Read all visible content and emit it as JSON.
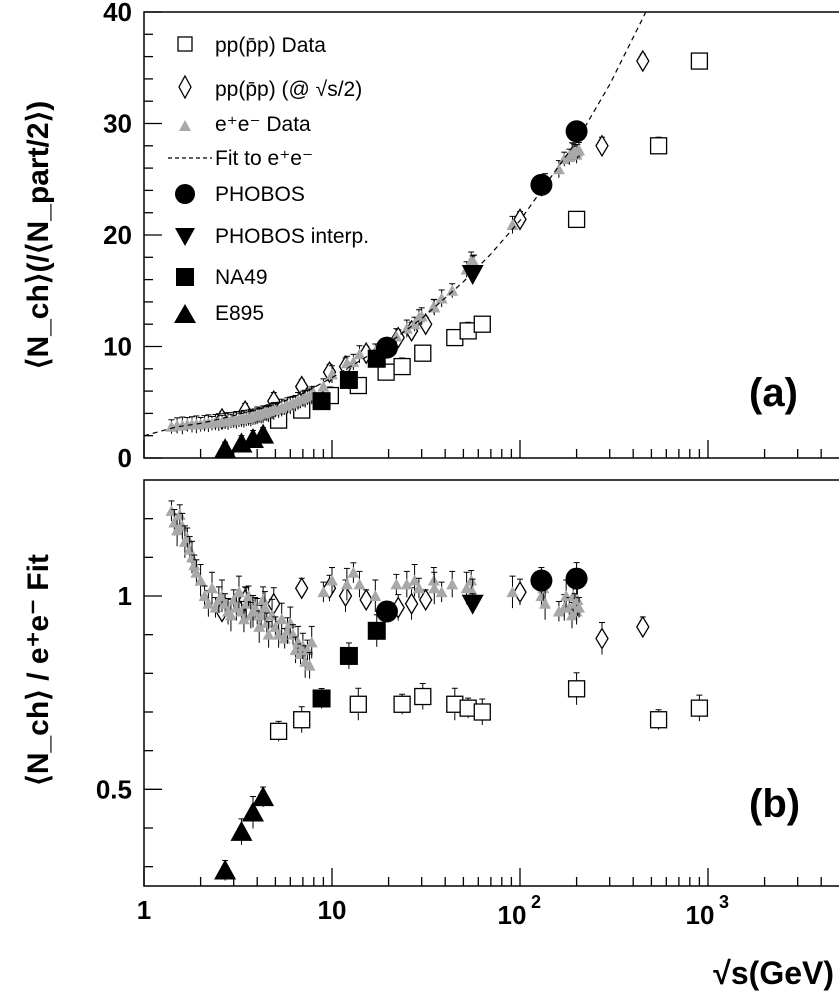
{
  "chart_data": [
    {
      "panel": "(a)",
      "type": "scatter",
      "xscale": "log",
      "xlim": [
        1,
        6000
      ],
      "ylim": [
        0,
        40
      ],
      "yticks": [
        0,
        10,
        20,
        30,
        40
      ],
      "ylabel": "⟨N_ch⟩(/⟨N_part/2⟩)",
      "legend_position": "top-left",
      "series": [
        {
          "name": "pp(p̄p) Data",
          "marker": "open-square",
          "color": "#000000",
          "x": [
            5.2,
            6.9,
            9.8,
            13.8,
            19.4,
            23.6,
            30.4,
            45,
            53,
            63,
            200,
            546,
            900
          ],
          "y": [
            3.4,
            4.3,
            5.6,
            6.5,
            7.7,
            8.2,
            9.4,
            10.8,
            11.4,
            12.0,
            21.4,
            28.0,
            35.6
          ]
        },
        {
          "name": "pp(p̄p) (@ √s/2)",
          "marker": "open-diamond",
          "color": "#000000",
          "x": [
            2.6,
            3.45,
            4.9,
            6.9,
            9.7,
            11.8,
            15.2,
            22.5,
            26.5,
            31.5,
            100,
            273,
            450
          ],
          "y": [
            3.5,
            4.2,
            5.1,
            6.4,
            7.7,
            8.2,
            9.4,
            10.8,
            11.4,
            12.0,
            21.4,
            28.0,
            35.6
          ]
        },
        {
          "name": "e⁺e⁻ Data",
          "marker": "filled-triangle",
          "color": "#a8a8a8",
          "x": [
            1.4,
            1.5,
            1.6,
            1.7,
            1.8,
            1.9,
            2.0,
            2.1,
            2.2,
            2.3,
            2.4,
            2.5,
            2.6,
            2.7,
            2.8,
            2.9,
            3.0,
            3.1,
            3.2,
            3.3,
            3.4,
            3.5,
            3.6,
            3.7,
            3.8,
            3.9,
            4.0,
            4.1,
            4.2,
            4.3,
            4.4,
            4.5,
            4.6,
            4.7,
            4.8,
            4.9,
            5.0,
            5.2,
            5.4,
            5.6,
            5.8,
            6.0,
            6.2,
            6.4,
            6.6,
            6.8,
            7.0,
            7.2,
            7.4,
            7.6,
            7.8,
            8.0,
            9.0,
            10.0,
            12.0,
            13.0,
            14.0,
            17.0,
            22.0,
            25.0,
            27.5,
            29.0,
            30.0,
            34.8,
            35.0,
            38.3,
            43.6,
            52.0,
            55.0,
            56.0,
            57.0,
            91.2,
            130,
            136,
            161,
            172,
            183,
            189,
            192,
            196,
            200,
            202,
            206
          ],
          "y": [
            2.8,
            2.9,
            2.9,
            3.0,
            3.0,
            3.0,
            3.0,
            3.1,
            3.1,
            3.1,
            3.2,
            3.2,
            3.2,
            3.3,
            3.3,
            3.3,
            3.4,
            3.4,
            3.4,
            3.5,
            3.5,
            3.5,
            3.6,
            3.6,
            3.6,
            3.7,
            3.8,
            3.8,
            3.8,
            3.9,
            4.0,
            4.0,
            4.0,
            4.1,
            4.2,
            4.2,
            4.3,
            4.3,
            4.5,
            4.5,
            4.7,
            4.7,
            4.9,
            4.9,
            5.1,
            5.1,
            5.3,
            5.3,
            5.4,
            5.5,
            5.6,
            5.8,
            6.4,
            7.5,
            8.5,
            8.6,
            9.3,
            9.6,
            10.9,
            11.6,
            12.0,
            12.6,
            12.7,
            13.6,
            13.5,
            14.3,
            15.0,
            16.9,
            17.7,
            17.5,
            17.5,
            20.9,
            24.1,
            24.8,
            25.9,
            26.8,
            27.0,
            27.5,
            27.6,
            27.4,
            27.2,
            27.5,
            27.6
          ]
        },
        {
          "name": "Fit to e⁺e⁻",
          "marker": "dashed-line",
          "color": "#000000",
          "x": [
            1.0,
            1.5,
            2.0,
            3.0,
            5.0,
            7.0,
            10,
            15,
            20,
            30,
            50,
            70,
            100,
            130,
            200,
            300,
            500
          ],
          "y": [
            2.0,
            2.8,
            3.1,
            3.8,
            4.8,
            5.8,
            7.2,
            9.0,
            10.3,
            12.5,
            15.8,
            18.3,
            21.3,
            24.0,
            28.4,
            33.5,
            41.0
          ]
        },
        {
          "name": "PHOBOS",
          "marker": "filled-circle",
          "color": "#000000",
          "x": [
            19.6,
            130,
            200
          ],
          "y": [
            9.9,
            24.5,
            29.3
          ]
        },
        {
          "name": "PHOBOS interp.",
          "marker": "filled-down-triangle",
          "color": "#000000",
          "x": [
            56
          ],
          "y": [
            16.5
          ]
        },
        {
          "name": "NA49",
          "marker": "filled-square",
          "color": "#000000",
          "x": [
            8.8,
            12.3,
            17.3
          ],
          "y": [
            5.1,
            7.0,
            8.9
          ]
        },
        {
          "name": "E895",
          "marker": "filled-triangle",
          "color": "#000000",
          "x": [
            2.7,
            3.3,
            3.8,
            4.3
          ],
          "y": [
            0.8,
            1.3,
            1.7,
            2.1
          ]
        }
      ]
    },
    {
      "panel": "(b)",
      "type": "scatter",
      "xscale": "log",
      "xlim": [
        1,
        6000
      ],
      "ylim": [
        0.25,
        1.3
      ],
      "yticks": [
        0.5,
        1
      ],
      "ylabel": "⟨N_ch⟩ / e⁺e⁻ Fit",
      "xlabel": "√s(GeV)",
      "xticks": [
        1,
        10,
        100,
        1000
      ],
      "series": [
        {
          "name": "pp(p̄p) Data",
          "marker": "open-square",
          "color": "#000000",
          "x": [
            5.2,
            6.9,
            13.8,
            23.6,
            30.4,
            45,
            53,
            63,
            200,
            546,
            900
          ],
          "y": [
            0.65,
            0.68,
            0.72,
            0.72,
            0.74,
            0.72,
            0.71,
            0.7,
            0.76,
            0.68,
            0.71
          ]
        },
        {
          "name": "pp(p̄p) (@ √s/2)",
          "marker": "open-diamond",
          "color": "#000000",
          "x": [
            2.6,
            3.45,
            4.9,
            6.9,
            9.7,
            11.8,
            15.2,
            22.5,
            26.5,
            31.5,
            100,
            273,
            450
          ],
          "y": [
            0.96,
            0.99,
            0.98,
            1.02,
            1.02,
            1.0,
            0.99,
            0.97,
            0.98,
            0.99,
            1.01,
            0.89,
            0.92
          ]
        },
        {
          "name": "e⁺e⁻ Data",
          "marker": "filled-triangle",
          "color": "#a8a8a8",
          "x": [
            1.4,
            1.45,
            1.5,
            1.55,
            1.6,
            1.65,
            1.7,
            1.75,
            1.8,
            1.85,
            1.9,
            2.0,
            2.1,
            2.2,
            2.3,
            2.4,
            2.5,
            2.6,
            2.7,
            2.8,
            2.9,
            3.0,
            3.1,
            3.2,
            3.3,
            3.4,
            3.5,
            3.6,
            3.7,
            3.8,
            3.9,
            4.0,
            4.1,
            4.2,
            4.3,
            4.4,
            4.5,
            4.6,
            4.8,
            5.0,
            5.2,
            5.4,
            5.6,
            5.8,
            6.0,
            6.2,
            6.4,
            6.6,
            6.8,
            7.0,
            7.2,
            7.4,
            7.6,
            7.8,
            9.0,
            10.0,
            12.0,
            13.0,
            14.0,
            17.0,
            22.0,
            25.0,
            27.5,
            29.0,
            34.8,
            35.0,
            38.3,
            43.6,
            52.0,
            55.0,
            56.0,
            91.2,
            130,
            133,
            136,
            161,
            172,
            176,
            183,
            189,
            192,
            196,
            200,
            202,
            206
          ],
          "y": [
            1.22,
            1.19,
            1.17,
            1.21,
            1.18,
            1.14,
            1.15,
            1.12,
            1.1,
            1.08,
            1.06,
            1.04,
            1.0,
            0.98,
            1.02,
            0.97,
            0.99,
            1.0,
            0.98,
            0.96,
            0.95,
            0.99,
            0.97,
            1.01,
            0.96,
            0.94,
            0.98,
            1.0,
            0.95,
            0.96,
            0.97,
            0.96,
            0.92,
            0.95,
            0.99,
            0.97,
            0.93,
            0.9,
            0.95,
            0.92,
            0.9,
            0.94,
            0.89,
            0.91,
            0.93,
            0.9,
            0.86,
            0.88,
            0.85,
            0.87,
            0.83,
            0.86,
            0.82,
            0.88,
            1.01,
            1.04,
            1.03,
            1.06,
            1.03,
            1.0,
            1.03,
            1.03,
            1.04,
            1.02,
            1.04,
            1.02,
            1.01,
            1.03,
            1.02,
            1.04,
            1.01,
            1.01,
            1.0,
            1.02,
            0.98,
            0.96,
            0.97,
            1.0,
            0.97,
            0.95,
            1.0,
            0.98,
            0.96,
            0.99,
            0.97
          ]
        },
        {
          "name": "PHOBOS",
          "marker": "filled-circle",
          "color": "#000000",
          "x": [
            19.6,
            130,
            200
          ],
          "y": [
            0.96,
            1.04,
            1.045
          ]
        },
        {
          "name": "PHOBOS interp.",
          "marker": "filled-down-triangle",
          "color": "#000000",
          "x": [
            56
          ],
          "y": [
            0.98
          ]
        },
        {
          "name": "NA49",
          "marker": "filled-square",
          "color": "#000000",
          "x": [
            8.8,
            12.3,
            17.3
          ],
          "y": [
            0.735,
            0.845,
            0.91
          ]
        },
        {
          "name": "E895",
          "marker": "filled-triangle",
          "color": "#000000",
          "x": [
            2.7,
            3.3,
            3.8,
            4.3
          ],
          "y": [
            0.29,
            0.39,
            0.44,
            0.48
          ]
        }
      ]
    }
  ],
  "panel_labels": {
    "a": "(a)",
    "b": "(b)"
  },
  "axis_labels": {
    "top_y": "⟨N_ch⟩(/⟨N_part/2⟩)",
    "bottom_y": "⟨N_ch⟩ / e⁺e⁻ Fit",
    "x": "√s(GeV)"
  },
  "legend": [
    {
      "label": "pp(p̄p) Data",
      "marker": "open-square"
    },
    {
      "label": "pp(p̄p) (@ √s/2)",
      "marker": "open-diamond"
    },
    {
      "label": "e⁺e⁻ Data",
      "marker": "grey-triangle"
    },
    {
      "label": "Fit to e⁺e⁻",
      "marker": "dashed-line"
    },
    {
      "label": "PHOBOS",
      "marker": "filled-circle"
    },
    {
      "label": "PHOBOS interp.",
      "marker": "filled-down-triangle"
    },
    {
      "label": "NA49",
      "marker": "filled-square"
    },
    {
      "label": "E895",
      "marker": "filled-triangle"
    }
  ],
  "colors": {
    "grey": "#a8a8a8",
    "black": "#000000"
  }
}
